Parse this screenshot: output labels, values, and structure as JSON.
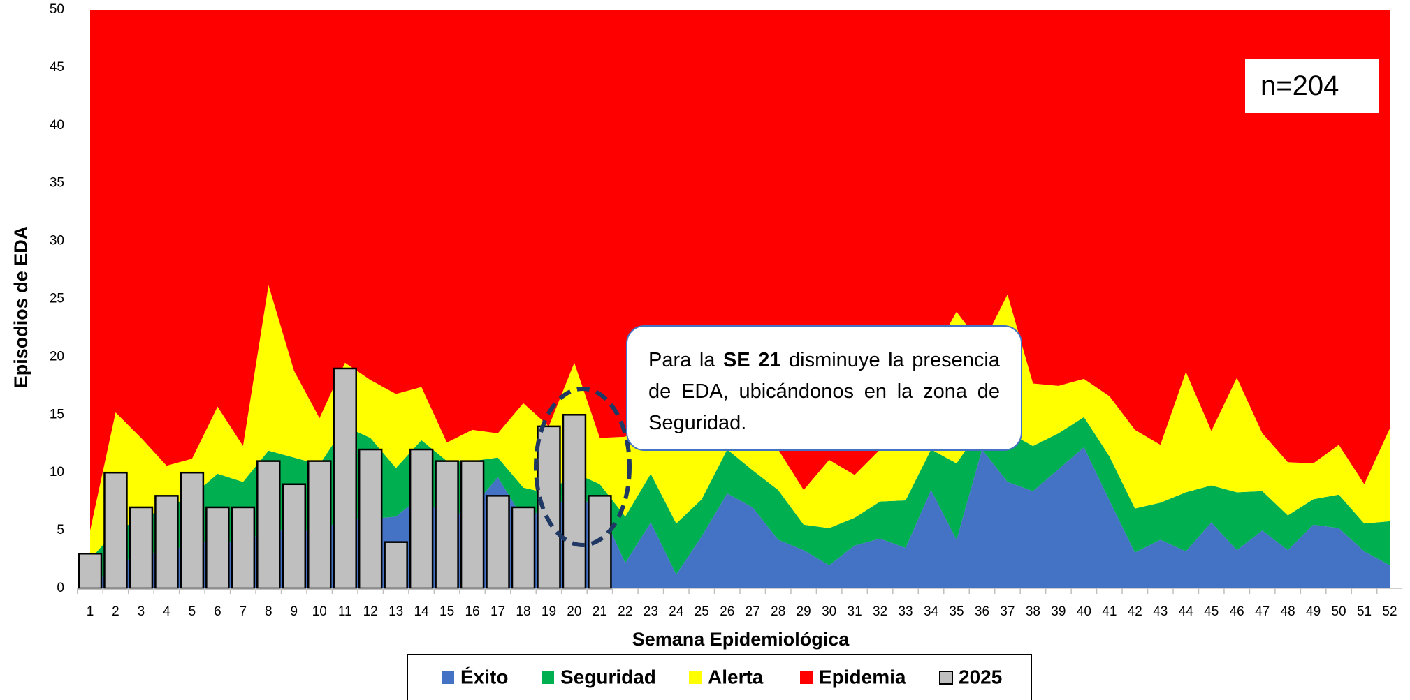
{
  "chart_data": {
    "type": "area",
    "y_label": "Episodios de EDA",
    "x_label": "Semana Epidemiológica",
    "annotation": {
      "parts": [
        "Para la ",
        "SE 21",
        " disminuye la presencia de EDA, ubicándonos en la zona de Seguridad."
      ]
    },
    "count_label": "n=204",
    "categories": [
      "1",
      "2",
      "3",
      "4",
      "5",
      "6",
      "7",
      "8",
      "9",
      "10",
      "11",
      "12",
      "13",
      "14",
      "15",
      "16",
      "17",
      "18",
      "19",
      "20",
      "21",
      "22",
      "23",
      "24",
      "25",
      "26",
      "27",
      "28",
      "29",
      "30",
      "31",
      "32",
      "33",
      "34",
      "35",
      "36",
      "37",
      "38",
      "39",
      "40",
      "41",
      "42",
      "43",
      "44",
      "45",
      "46",
      "47",
      "48",
      "49",
      "50",
      "51",
      "52"
    ],
    "ylim": [
      0,
      50
    ],
    "yticks": [
      0,
      5,
      10,
      15,
      20,
      25,
      30,
      35,
      40,
      45,
      50
    ],
    "series": [
      {
        "name": "Éxito",
        "color": "#4472c4",
        "type": "area",
        "values": [
          0,
          2,
          3,
          3,
          4,
          4,
          4,
          5,
          5,
          5,
          6,
          6,
          6.2,
          8,
          6,
          7,
          9.6,
          6,
          7,
          8,
          7,
          2.2,
          5.7,
          1.2,
          4.5,
          8.2,
          7,
          4.2,
          3.3,
          2,
          3.7,
          4.3,
          3.5,
          8.5,
          4.2,
          12,
          9.2,
          8.4,
          10.3,
          12.2,
          7.6,
          3.1,
          4.2,
          3.2,
          5.7,
          3.3,
          5,
          3.3,
          5.5,
          5.2,
          3.2,
          2
        ]
      },
      {
        "name": "Seguridad",
        "color": "#00b050",
        "type": "area",
        "values": [
          2.5,
          3,
          3,
          4,
          4,
          5.9,
          5.2,
          6.9,
          6.3,
          5.7,
          8,
          7,
          4.2,
          4.8,
          5,
          4,
          1.7,
          2.7,
          1.2,
          2,
          2,
          4,
          4.2,
          4.4,
          3.2,
          3.8,
          3.2,
          4.3,
          2.2,
          3.2,
          2.4,
          3.2,
          4.1,
          3.5,
          6.6,
          2,
          4.3,
          3.9,
          3.1,
          2.6,
          3.8,
          3.8,
          3.2,
          5.1,
          3.2,
          5,
          3.4,
          3,
          2.2,
          2.9,
          2.4,
          3.8
        ]
      },
      {
        "name": "Alerta",
        "color": "#ffff00",
        "type": "area",
        "values": [
          2.5,
          10.2,
          7,
          3.6,
          3.2,
          5.8,
          3.1,
          14.3,
          7.5,
          4,
          5.5,
          5,
          6.4,
          4.6,
          1.6,
          2.7,
          2.1,
          7.3,
          5.8,
          9.5,
          4,
          6.9,
          5.1,
          8.4,
          7.3,
          5,
          4.8,
          3.5,
          3,
          5.9,
          3.7,
          4.5,
          6.4,
          8,
          13.1,
          7,
          11.9,
          5.4,
          4.1,
          3.3,
          5.2,
          6.8,
          5,
          10.4,
          4.7,
          9.9,
          5,
          4.6,
          3.1,
          4.3,
          3.4,
          8
        ]
      },
      {
        "name": "Epidemia",
        "color": "#ff0000",
        "type": "area",
        "values": [
          45,
          34.8,
          37,
          39.4,
          38.8,
          34.3,
          37.7,
          23.8,
          31.2,
          35.3,
          30.5,
          32,
          33.2,
          32.6,
          37.4,
          36.3,
          36.6,
          34,
          36,
          30.5,
          37,
          36.9,
          35,
          36,
          35,
          33,
          35,
          38,
          41.5,
          38.9,
          40.2,
          38,
          36,
          30,
          26.1,
          29,
          24.6,
          32.3,
          32.5,
          31.9,
          33.4,
          36.3,
          37.6,
          31.3,
          36.4,
          31.8,
          36.6,
          39.1,
          39.2,
          37.6,
          41,
          36.2
        ]
      },
      {
        "name": "2025",
        "color": "#bfbfbf",
        "type": "bar",
        "values": [
          3,
          10,
          7,
          8,
          10,
          7,
          7,
          11,
          9,
          11,
          19,
          12,
          4,
          12,
          11,
          11,
          8,
          7,
          14,
          15,
          8,
          null,
          null,
          null,
          null,
          null,
          null,
          null,
          null,
          null,
          null,
          null,
          null,
          null,
          null,
          null,
          null,
          null,
          null,
          null,
          null,
          null,
          null,
          null,
          null,
          null,
          null,
          null,
          null,
          null,
          null,
          null
        ]
      }
    ]
  }
}
